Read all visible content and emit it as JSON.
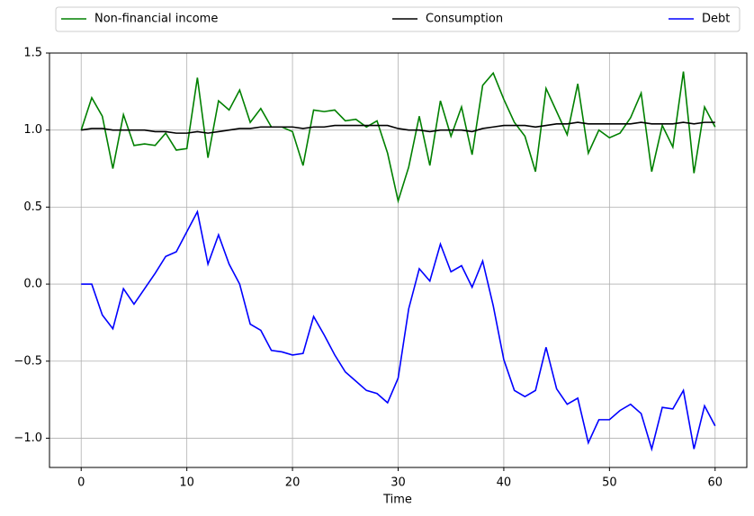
{
  "chart_data": {
    "type": "line",
    "x_label": "Time",
    "x": [
      0,
      1,
      2,
      3,
      4,
      5,
      6,
      7,
      8,
      9,
      10,
      11,
      12,
      13,
      14,
      15,
      16,
      17,
      18,
      19,
      20,
      21,
      22,
      23,
      24,
      25,
      26,
      27,
      28,
      29,
      30,
      31,
      32,
      33,
      34,
      35,
      36,
      37,
      38,
      39,
      40,
      41,
      42,
      43,
      44,
      45,
      46,
      47,
      48,
      49,
      50,
      51,
      52,
      53,
      54,
      55,
      56,
      57,
      58,
      59,
      60
    ],
    "series": [
      {
        "name": "Non-financial income",
        "color": "#008000",
        "values": [
          1.0,
          1.21,
          1.09,
          0.75,
          1.1,
          0.9,
          0.91,
          0.9,
          0.98,
          0.87,
          0.88,
          1.34,
          0.82,
          1.19,
          1.13,
          1.26,
          1.05,
          1.14,
          1.02,
          1.02,
          0.99,
          0.77,
          1.13,
          1.12,
          1.13,
          1.06,
          1.07,
          1.02,
          1.06,
          0.85,
          0.54,
          0.76,
          1.09,
          0.77,
          1.19,
          0.96,
          1.15,
          0.84,
          1.29,
          1.37,
          1.2,
          1.05,
          0.96,
          0.73,
          1.27,
          1.12,
          0.97,
          1.3,
          0.85,
          1.0,
          0.95,
          0.98,
          1.08,
          1.24,
          0.73,
          1.03,
          0.89,
          1.38,
          0.72,
          1.15,
          1.02
        ]
      },
      {
        "name": "Consumption",
        "color": "#000000",
        "values": [
          1.0,
          1.01,
          1.01,
          1.0,
          1.0,
          1.0,
          1.0,
          0.99,
          0.99,
          0.98,
          0.98,
          0.99,
          0.98,
          0.99,
          1.0,
          1.01,
          1.01,
          1.02,
          1.02,
          1.02,
          1.02,
          1.01,
          1.02,
          1.02,
          1.03,
          1.03,
          1.03,
          1.03,
          1.03,
          1.03,
          1.01,
          1.0,
          1.0,
          0.99,
          1.0,
          1.0,
          1.0,
          0.99,
          1.01,
          1.02,
          1.03,
          1.03,
          1.03,
          1.02,
          1.03,
          1.04,
          1.04,
          1.05,
          1.04,
          1.04,
          1.04,
          1.04,
          1.04,
          1.05,
          1.04,
          1.04,
          1.04,
          1.05,
          1.04,
          1.05,
          1.05
        ]
      },
      {
        "name": "Debt",
        "color": "#0000ff",
        "values": [
          0.0,
          0.0,
          -0.2,
          -0.29,
          -0.03,
          -0.13,
          -0.03,
          0.07,
          0.18,
          0.21,
          0.34,
          0.47,
          0.13,
          0.32,
          0.13,
          0.0,
          -0.26,
          -0.3,
          -0.43,
          -0.44,
          -0.46,
          -0.45,
          -0.21,
          -0.33,
          -0.46,
          -0.57,
          -0.63,
          -0.69,
          -0.71,
          -0.77,
          -0.61,
          -0.16,
          0.1,
          0.02,
          0.26,
          0.08,
          0.12,
          -0.02,
          0.15,
          -0.14,
          -0.49,
          -0.69,
          -0.73,
          -0.69,
          -0.41,
          -0.68,
          -0.78,
          -0.74,
          -1.03,
          -0.88,
          -0.88,
          -0.82,
          -0.78,
          -0.84,
          -1.07,
          -0.8,
          -0.81,
          -0.69,
          -1.07,
          -0.79,
          -0.92
        ]
      }
    ],
    "xlim": [
      -3,
      63
    ],
    "xticks": [
      0,
      10,
      20,
      30,
      40,
      50,
      60
    ],
    "ylim": [
      -1.19,
      1.5
    ],
    "yticks": [
      {
        "value": -1,
        "label": "−1.0"
      },
      {
        "value": -0.5,
        "label": "−0.5"
      },
      {
        "value": 0,
        "label": "0.0"
      },
      0.5,
      {
        "value": 1,
        "label": "1.0"
      },
      1.5
    ],
    "grid": true,
    "legend": "top"
  }
}
